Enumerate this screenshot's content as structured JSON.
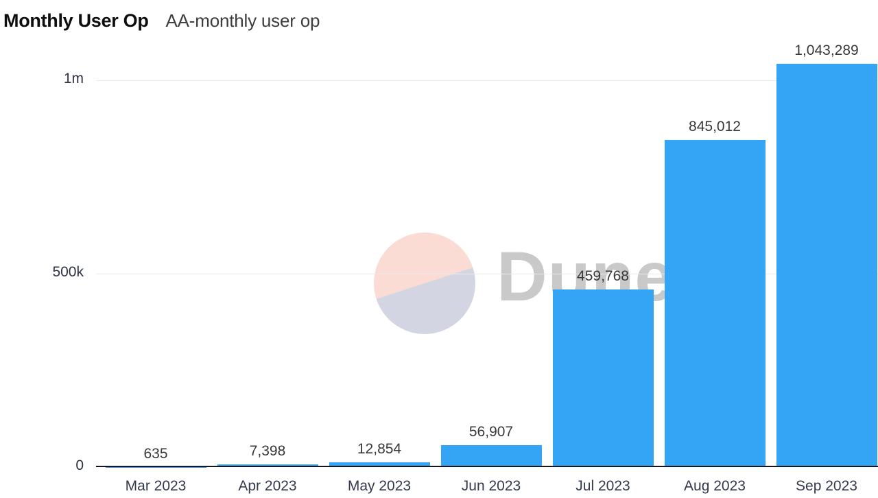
{
  "header": {
    "title": "Monthly User Op",
    "subtitle": "AA-monthly user op"
  },
  "watermark": {
    "text": "Dune",
    "circle_top_color": "#fadcd4",
    "circle_bottom_color": "#d4d5e3",
    "text_color": "#c9c9c9"
  },
  "chart_data": {
    "type": "bar",
    "title": "Monthly User Op",
    "subtitle": "AA-monthly user op",
    "xlabel": "",
    "ylabel": "",
    "categories": [
      "Mar 2023",
      "Apr 2023",
      "May 2023",
      "Jun 2023",
      "Jul 2023",
      "Aug 2023",
      "Sep 2023"
    ],
    "values": [
      635,
      7398,
      12854,
      56907,
      459768,
      845012,
      1043289
    ],
    "value_labels": [
      "635",
      "7,398",
      "12,854",
      "56,907",
      "459,768",
      "845,012",
      "1,043,289"
    ],
    "y_ticks": [
      {
        "label": "0",
        "value": 0
      },
      {
        "label": "500k",
        "value": 500000
      },
      {
        "label": "1m",
        "value": 1000000
      }
    ],
    "ylim": [
      0,
      1100000
    ],
    "grid": "horizontal",
    "legend": "none",
    "bar_color": "#34a4f4",
    "axis_line_color": "#14121d",
    "gridline_color": "#ebebeb"
  }
}
